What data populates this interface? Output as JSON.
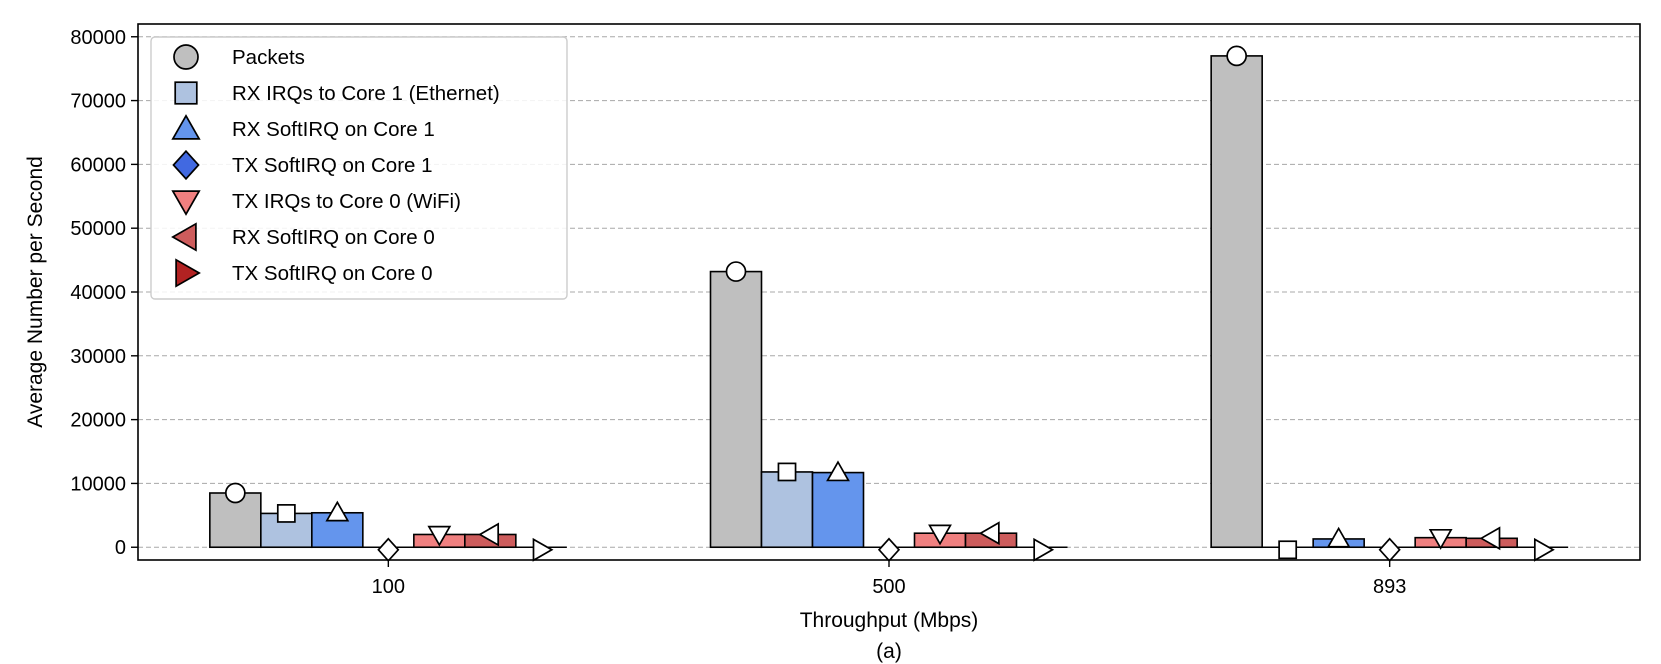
{
  "chart_data": {
    "type": "bar",
    "title": "",
    "caption": "(a)",
    "xlabel": "Throughput (Mbps)",
    "ylabel": "Average Number per Second",
    "categories": [
      "100",
      "500",
      "893"
    ],
    "ylim": [
      -2000,
      82000
    ],
    "yticks": [
      "0",
      "10000",
      "20000",
      "30000",
      "40000",
      "50000",
      "60000",
      "70000",
      "80000"
    ],
    "grid": "horizontal dashed",
    "legend_position": "top-left",
    "series": [
      {
        "name": "Packets",
        "values": [
          8500,
          43200,
          77000
        ],
        "color": "#bfbfbf",
        "marker": "circle",
        "marker_fill": "#bfbfbf"
      },
      {
        "name": "RX IRQs to Core 1 (Ethernet)",
        "values": [
          5300,
          11800,
          0
        ],
        "color": "#aec2e0",
        "marker": "square",
        "marker_fill": "#aec2e0"
      },
      {
        "name": "RX SoftIRQ on Core 1",
        "values": [
          5400,
          11700,
          1300
        ],
        "color": "#6495ed",
        "marker": "triangle-up",
        "marker_fill": "#6495ed"
      },
      {
        "name": "TX SoftIRQ on Core 1",
        "values": [
          0,
          0,
          0
        ],
        "color": "#4169e1",
        "marker": "diamond",
        "marker_fill": "#4169e1"
      },
      {
        "name": "TX IRQs to Core 0 (WiFi)",
        "values": [
          2000,
          2200,
          1500
        ],
        "color": "#f08080",
        "marker": "triangle-down",
        "marker_fill": "#f08080"
      },
      {
        "name": "RX SoftIRQ on Core 0",
        "values": [
          2000,
          2200,
          1400
        ],
        "color": "#cd5c5c",
        "marker": "triangle-left",
        "marker_fill": "#cd5c5c"
      },
      {
        "name": "TX SoftIRQ on Core 0",
        "values": [
          0,
          0,
          0
        ],
        "color": "#b22222",
        "marker": "triangle-right",
        "marker_fill": "#b22222"
      }
    ]
  }
}
